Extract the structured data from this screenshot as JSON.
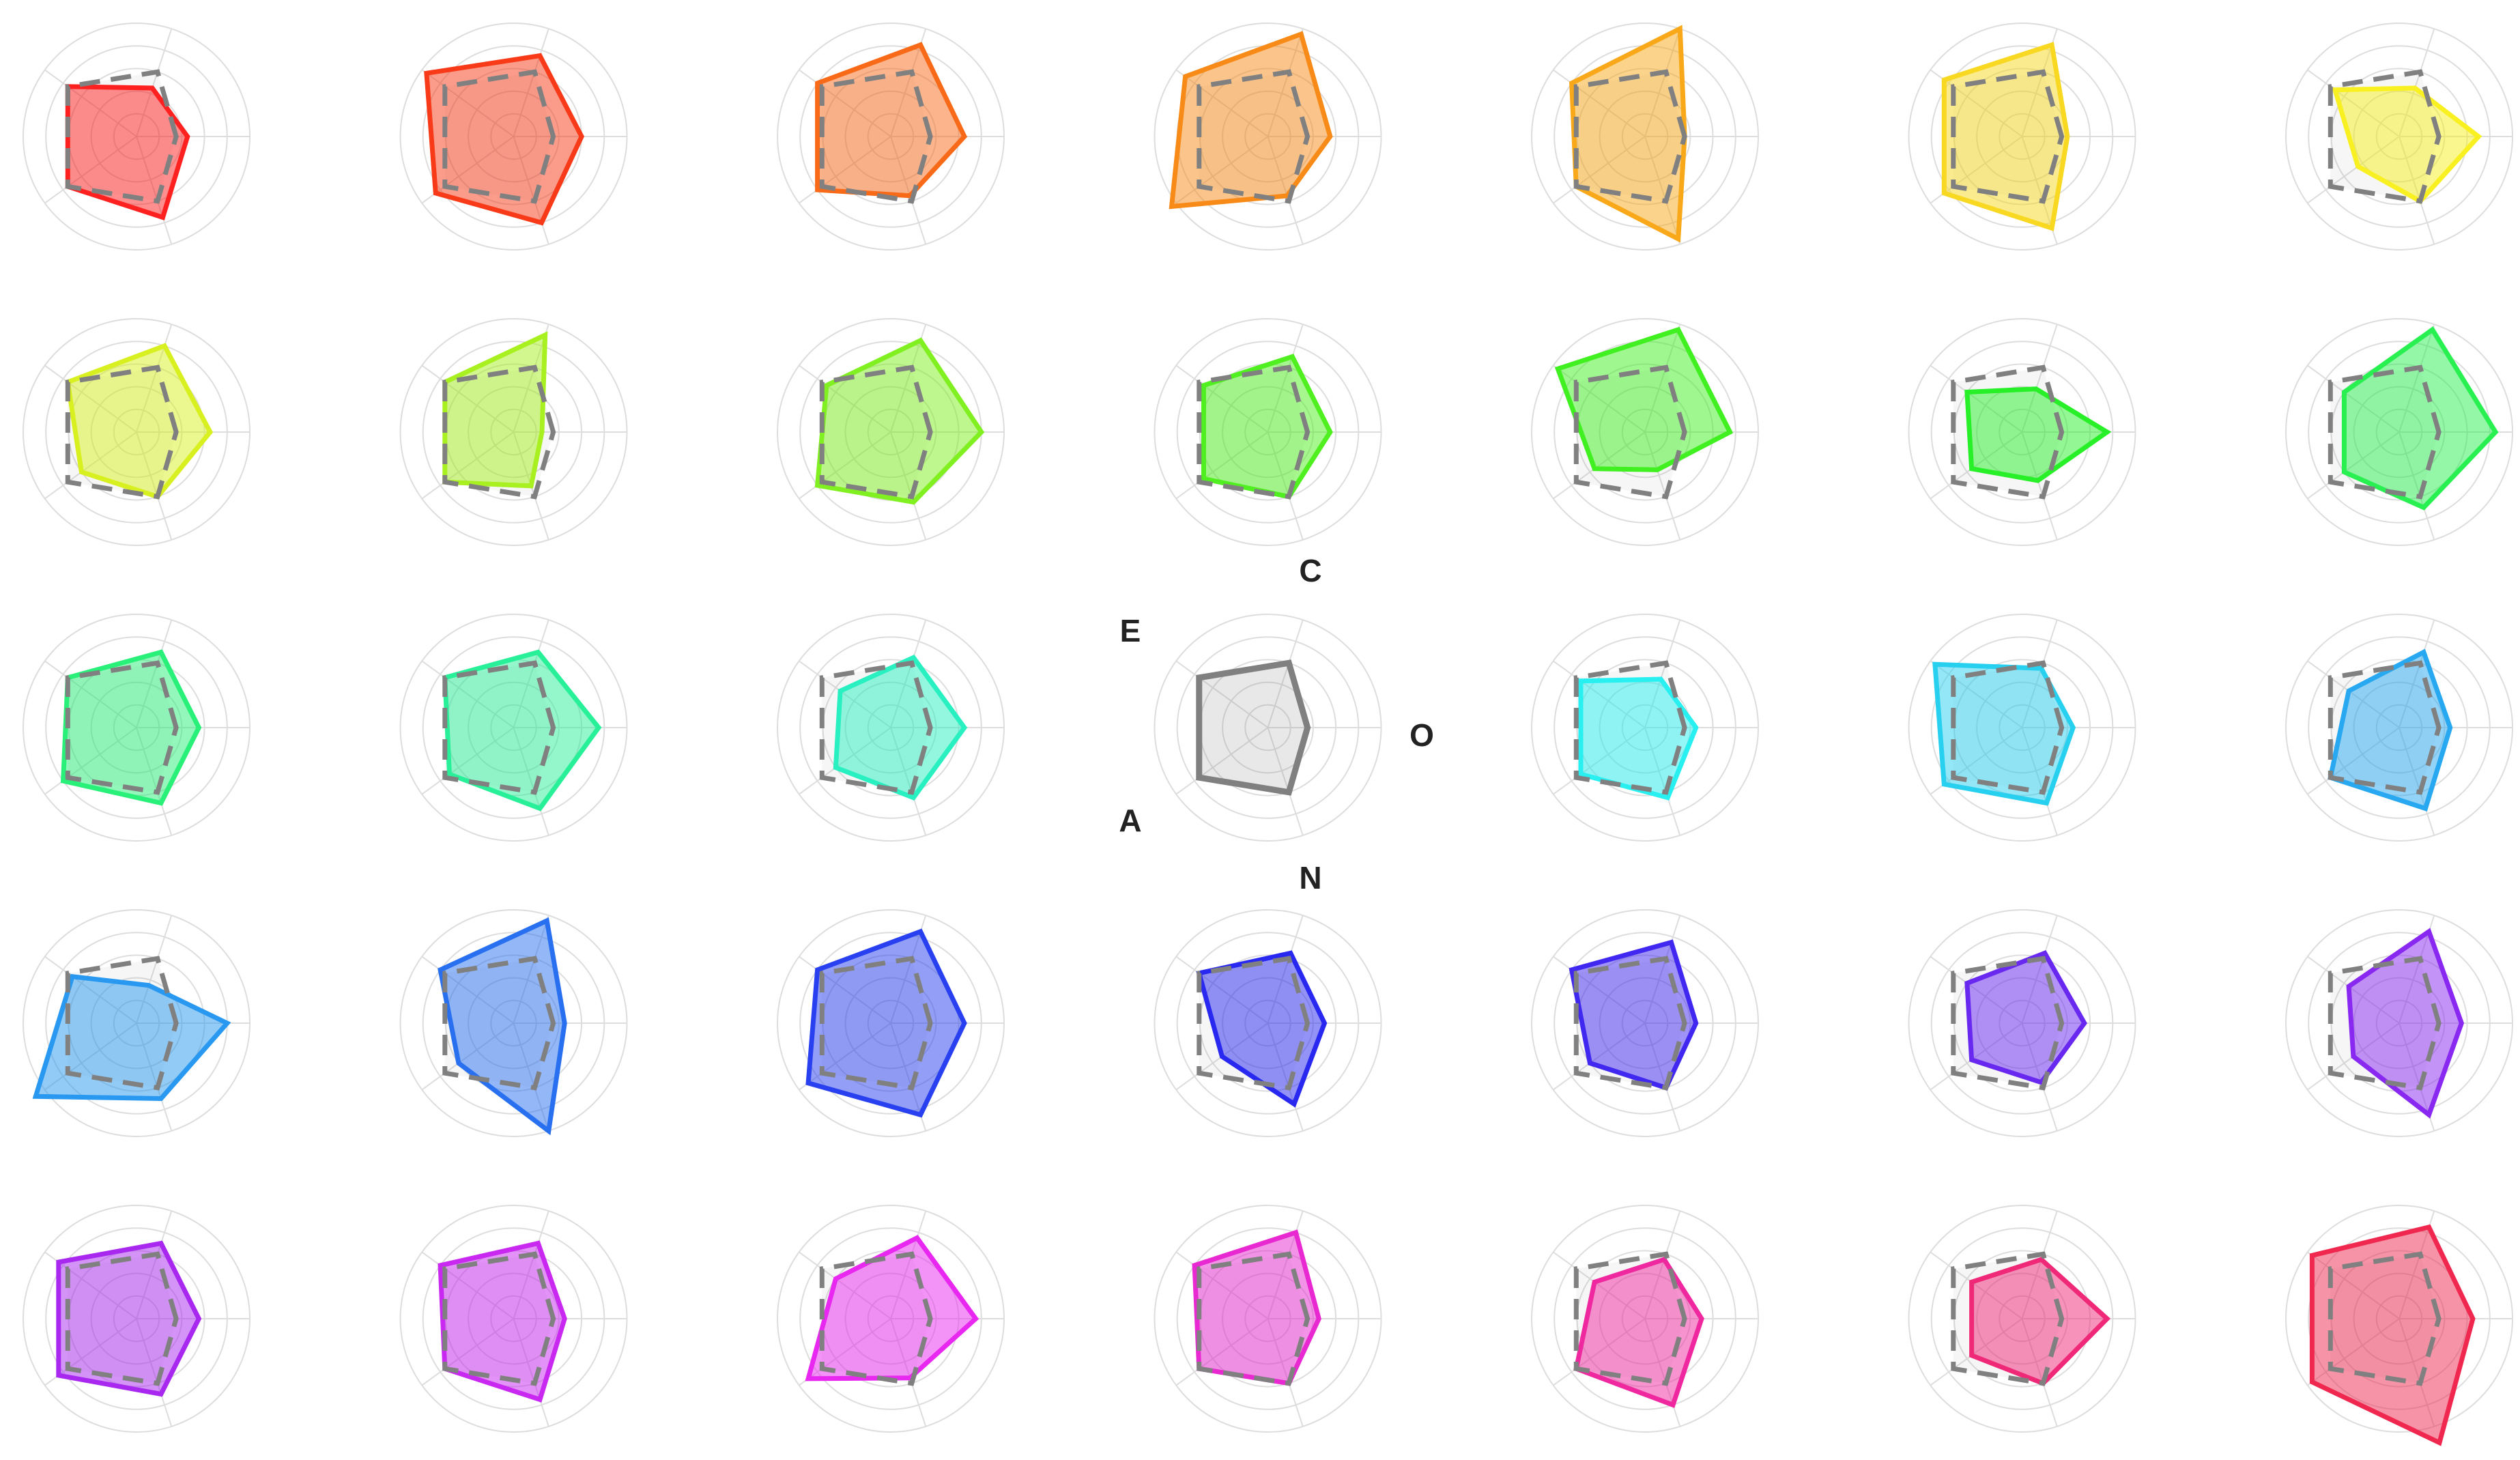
{
  "chart_data": {
    "type": "radar",
    "grid": true,
    "axes": [
      "O",
      "C",
      "E",
      "A",
      "N"
    ],
    "range": [
      0,
      1
    ],
    "reference": {
      "values": [
        0.35,
        0.6,
        0.75,
        0.75,
        0.6
      ],
      "color": "#808080"
    },
    "center": {
      "values": [
        0.35,
        0.6,
        0.75,
        0.75,
        0.6
      ],
      "color": "#808080",
      "labels": {
        "O": "O",
        "C": "C",
        "E": "E",
        "A": "A",
        "N": "N"
      }
    },
    "panels": [
      {
        "color": "#ff2020",
        "values": [
          0.45,
          0.45,
          0.75,
          0.75,
          0.75
        ]
      },
      {
        "color": "#f83a18",
        "values": [
          0.6,
          0.75,
          0.95,
          0.85,
          0.8
        ]
      },
      {
        "color": "#f86a18",
        "values": [
          0.65,
          0.85,
          0.8,
          0.8,
          0.55
        ]
      },
      {
        "color": "#f88a18",
        "values": [
          0.55,
          0.95,
          0.9,
          1.05,
          0.55
        ]
      },
      {
        "color": "#f8a818",
        "values": [
          0.35,
          1.0,
          0.8,
          0.75,
          0.95
        ]
      },
      {
        "color": "#f8d820",
        "values": [
          0.4,
          0.85,
          0.85,
          0.85,
          0.85
        ]
      },
      {
        "color": "#f8f020",
        "values": [
          0.7,
          0.45,
          0.7,
          0.45,
          0.6
        ]
      },
      {
        "color": "#d8f020",
        "values": [
          0.65,
          0.8,
          0.75,
          0.6,
          0.6
        ]
      },
      {
        "color": "#a8f020",
        "values": [
          0.25,
          0.9,
          0.75,
          0.75,
          0.5
        ]
      },
      {
        "color": "#80f020",
        "values": [
          0.8,
          0.85,
          0.7,
          0.8,
          0.65
        ]
      },
      {
        "color": "#50f020",
        "values": [
          0.55,
          0.7,
          0.7,
          0.7,
          0.6
        ]
      },
      {
        "color": "#40f020",
        "values": [
          0.75,
          0.95,
          0.95,
          0.55,
          0.35
        ]
      },
      {
        "color": "#28f028",
        "values": [
          0.75,
          0.4,
          0.6,
          0.55,
          0.45
        ]
      },
      {
        "color": "#28f050",
        "values": [
          0.85,
          0.95,
          0.6,
          0.6,
          0.7
        ]
      },
      {
        "color": "#28f078",
        "values": [
          0.55,
          0.7,
          0.75,
          0.8,
          0.7
        ]
      },
      {
        "color": "#28f098",
        "values": [
          0.75,
          0.7,
          0.75,
          0.7,
          0.75
        ]
      },
      {
        "color": "#28f0c0",
        "values": [
          0.65,
          0.65,
          0.55,
          0.6,
          0.65
        ]
      },
      {
        "color": "#28f0f0",
        "values": [
          0.45,
          0.45,
          0.7,
          0.7,
          0.65
        ]
      },
      {
        "color": "#28d0f0",
        "values": [
          0.45,
          0.55,
          0.95,
          0.85,
          0.7
        ]
      },
      {
        "color": "#28a8f0",
        "values": [
          0.45,
          0.7,
          0.55,
          0.75,
          0.75
        ]
      },
      {
        "color": "#2898f0",
        "values": [
          0.8,
          0.35,
          0.7,
          1.1,
          0.7
        ]
      },
      {
        "color": "#2870f0",
        "values": [
          0.45,
          0.95,
          0.8,
          0.6,
          1.0
        ]
      },
      {
        "color": "#2840f0",
        "values": [
          0.65,
          0.85,
          0.8,
          0.9,
          0.85
        ]
      },
      {
        "color": "#2828f0",
        "values": [
          0.5,
          0.65,
          0.75,
          0.5,
          0.75
        ]
      },
      {
        "color": "#4028f0",
        "values": [
          0.45,
          0.75,
          0.8,
          0.6,
          0.6
        ]
      },
      {
        "color": "#6828f0",
        "values": [
          0.55,
          0.65,
          0.6,
          0.55,
          0.55
        ]
      },
      {
        "color": "#8828f0",
        "values": [
          0.55,
          0.85,
          0.55,
          0.5,
          0.85
        ]
      },
      {
        "color": "#a828f0",
        "values": [
          0.55,
          0.7,
          0.85,
          0.85,
          0.7
        ]
      },
      {
        "color": "#c828f0",
        "values": [
          0.45,
          0.7,
          0.8,
          0.75,
          0.75
        ]
      },
      {
        "color": "#e828f0",
        "values": [
          0.75,
          0.75,
          0.6,
          0.9,
          0.55
        ]
      },
      {
        "color": "#e828d0",
        "values": [
          0.45,
          0.8,
          0.8,
          0.75,
          0.6
        ]
      },
      {
        "color": "#f028a0",
        "values": [
          0.5,
          0.55,
          0.55,
          0.75,
          0.8
        ]
      },
      {
        "color": "#f02878",
        "values": [
          0.75,
          0.55,
          0.55,
          0.55,
          0.6
        ]
      },
      {
        "color": "#f02850",
        "values": [
          0.65,
          0.85,
          0.95,
          0.95,
          1.15
        ]
      }
    ]
  }
}
